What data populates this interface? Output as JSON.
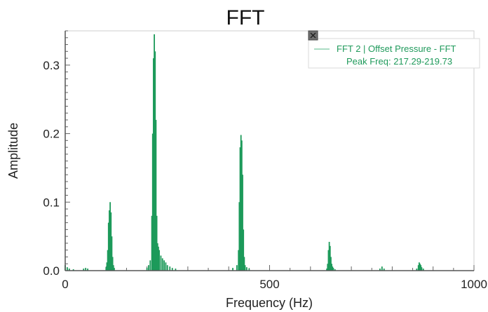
{
  "colors": {
    "series": "#1d9a5a",
    "axis": "#555555",
    "frame": "#cfcfcf",
    "legend_text": "#1f9a5b",
    "close_box": "#6f6f6f"
  },
  "legend": {
    "close_icon": "close-icon",
    "series_label": "FFT 2 | Offset Pressure - FFT",
    "peak_label": "Peak Freq: 217.29-219.73"
  },
  "chart_data": {
    "type": "bar",
    "title": "FFT",
    "xlabel": "Frequency (Hz)",
    "ylabel": "Amplitude",
    "xlim": [
      0,
      1000
    ],
    "ylim": [
      0,
      0.35
    ],
    "xticks": [
      "0",
      "500",
      "1000"
    ],
    "yticks": [
      "0.0",
      "0.1",
      "0.2",
      "0.3"
    ],
    "grid": false,
    "legend_position": "top-right",
    "series": [
      {
        "name": "FFT 2 | Offset Pressure - FFT",
        "x": [
          0,
          5,
          10,
          20,
          45,
          50,
          55,
          100,
          102,
          104,
          106,
          108,
          110,
          112,
          114,
          116,
          118,
          120,
          200,
          204,
          208,
          212,
          214,
          216,
          218,
          220,
          222,
          224,
          226,
          228,
          230,
          234,
          238,
          242,
          246,
          250,
          256,
          262,
          270,
          410,
          420,
          424,
          426,
          428,
          430,
          432,
          434,
          436,
          438,
          440,
          444,
          450,
          640,
          642,
          644,
          646,
          648,
          650,
          652,
          654,
          656,
          660,
          770,
          775,
          780,
          860,
          864,
          866,
          868,
          870,
          872,
          876
        ],
        "y": [
          0.008,
          0.005,
          0.003,
          0.002,
          0.003,
          0.004,
          0.003,
          0.005,
          0.012,
          0.03,
          0.07,
          0.088,
          0.1,
          0.085,
          0.05,
          0.02,
          0.008,
          0.004,
          0.004,
          0.008,
          0.015,
          0.08,
          0.2,
          0.31,
          0.345,
          0.32,
          0.22,
          0.08,
          0.04,
          0.035,
          0.03,
          0.022,
          0.018,
          0.015,
          0.012,
          0.008,
          0.006,
          0.004,
          0.003,
          0.004,
          0.008,
          0.03,
          0.1,
          0.18,
          0.198,
          0.19,
          0.14,
          0.06,
          0.02,
          0.008,
          0.005,
          0.003,
          0.003,
          0.01,
          0.03,
          0.042,
          0.036,
          0.02,
          0.01,
          0.006,
          0.004,
          0.002,
          0.003,
          0.006,
          0.003,
          0.003,
          0.008,
          0.012,
          0.01,
          0.008,
          0.005,
          0.003
        ]
      }
    ]
  }
}
